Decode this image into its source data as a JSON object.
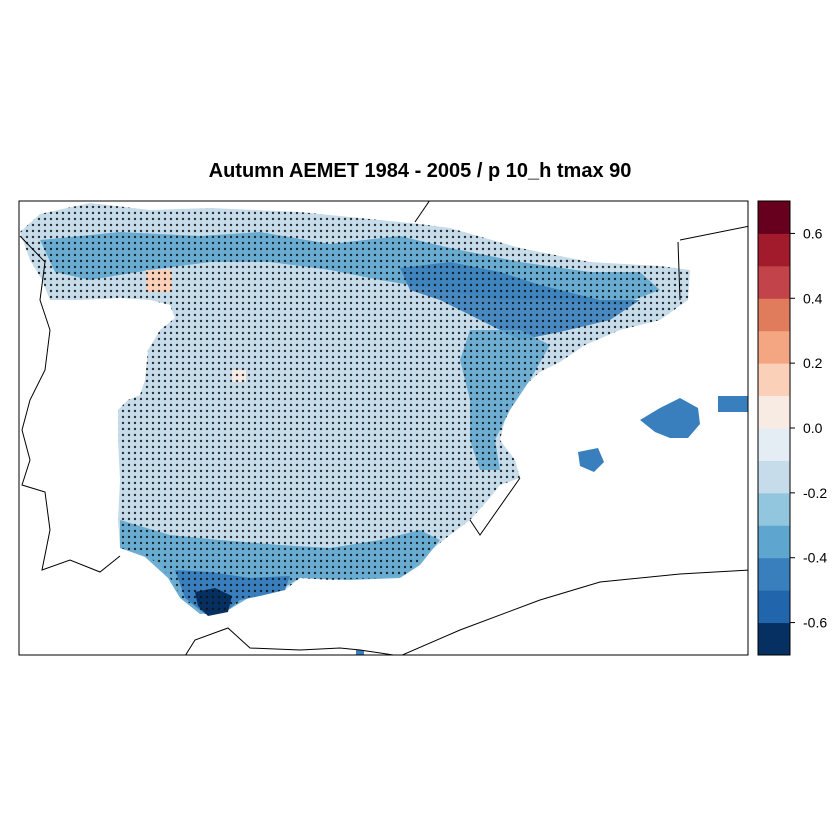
{
  "title": "Autumn AEMET 1984 - 2005 / p 10_h tmax 90",
  "colorbar": {
    "min": -0.7,
    "max": 0.7,
    "colors": [
      "#053061",
      "#2166ac",
      "#3a7fbd",
      "#5ea6cf",
      "#92c5de",
      "#c6dcea",
      "#e4edf4",
      "#f7ebe4",
      "#fbd0b9",
      "#f4a582",
      "#e07b5c",
      "#c2444a",
      "#a21b2d",
      "#67001f"
    ],
    "ticks": [
      {
        "value": 0.6,
        "label": "0.6"
      },
      {
        "value": 0.4,
        "label": "0.4"
      },
      {
        "value": 0.2,
        "label": "0.2"
      },
      {
        "value": 0.0,
        "label": "0.0"
      },
      {
        "value": -0.2,
        "label": "-0.2"
      },
      {
        "value": -0.4,
        "label": "-0.4"
      },
      {
        "value": -0.6,
        "label": "-0.6"
      }
    ]
  }
}
